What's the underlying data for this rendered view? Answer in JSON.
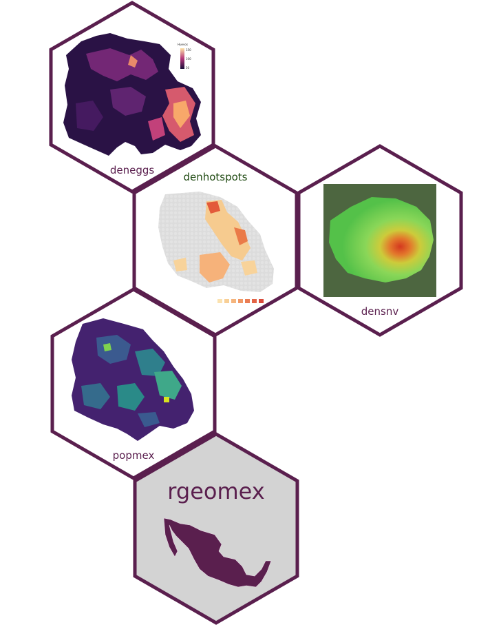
{
  "colors": {
    "hex_border": "#5a1f4e",
    "hex_fill": "#ffffff",
    "rgeomex_fill": "#d3d3d3",
    "mexico_fill": "#5a1f4e",
    "label_text": "#5a1f4e",
    "denhotspots_label": "#1f4a12"
  },
  "stickers": [
    {
      "id": "deneggs",
      "label": "deneggs",
      "icon": "magma-density-map"
    },
    {
      "id": "denhotspots",
      "label": "denhotspots",
      "icon": "hex-hotspot-map"
    },
    {
      "id": "densnv",
      "label": "densnv",
      "icon": "satellite-heat-map"
    },
    {
      "id": "popmex",
      "label": "popmex",
      "icon": "viridis-hex-map"
    },
    {
      "id": "rgeomex",
      "label": "rgeomex",
      "icon": "mexico-map"
    }
  ],
  "deneggs_legend": {
    "title": "Huevos",
    "ticks": [
      "150",
      "100",
      "50"
    ]
  }
}
